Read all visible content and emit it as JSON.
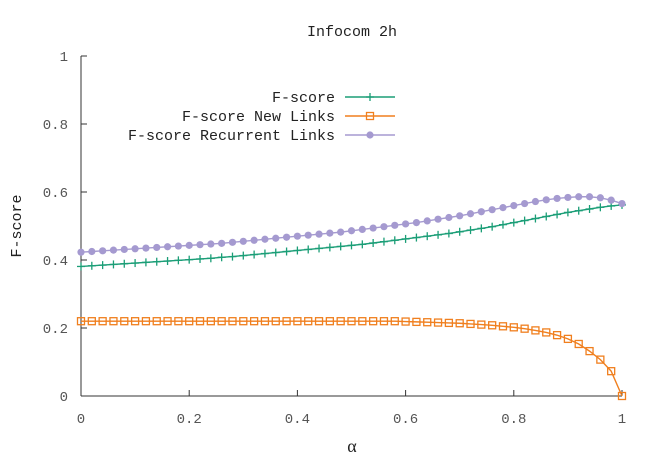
{
  "chart_data": {
    "type": "line",
    "title": "Infocom 2h",
    "xlabel": "α",
    "ylabel": "F-score",
    "xlim": [
      0,
      1
    ],
    "ylim": [
      0,
      1
    ],
    "xticks": [
      "0",
      "0.2",
      "0.4",
      "0.6",
      "0.8",
      "1"
    ],
    "yticks": [
      "0",
      "0.2",
      "0.4",
      "0.6",
      "0.8",
      "1"
    ],
    "legend_position": "top-center",
    "x": [
      0,
      0.02,
      0.04,
      0.06,
      0.08,
      0.1,
      0.12,
      0.14,
      0.16,
      0.18,
      0.2,
      0.22,
      0.24,
      0.26,
      0.28,
      0.3,
      0.32,
      0.34,
      0.36,
      0.38,
      0.4,
      0.42,
      0.44,
      0.46,
      0.48,
      0.5,
      0.52,
      0.54,
      0.56,
      0.58,
      0.6,
      0.62,
      0.64,
      0.66,
      0.68,
      0.7,
      0.72,
      0.74,
      0.76,
      0.78,
      0.8,
      0.82,
      0.84,
      0.86,
      0.88,
      0.9,
      0.92,
      0.94,
      0.96,
      0.98,
      1.0
    ],
    "series": [
      {
        "name": "F-score",
        "color": "#1b9e77",
        "marker": "plus",
        "values": [
          0.381,
          0.383,
          0.385,
          0.387,
          0.389,
          0.391,
          0.393,
          0.395,
          0.397,
          0.399,
          0.401,
          0.403,
          0.405,
          0.408,
          0.41,
          0.413,
          0.416,
          0.419,
          0.422,
          0.425,
          0.428,
          0.431,
          0.434,
          0.437,
          0.44,
          0.443,
          0.446,
          0.45,
          0.454,
          0.458,
          0.462,
          0.466,
          0.47,
          0.474,
          0.478,
          0.483,
          0.488,
          0.493,
          0.498,
          0.504,
          0.51,
          0.516,
          0.522,
          0.528,
          0.534,
          0.54,
          0.545,
          0.55,
          0.555,
          0.559,
          0.562
        ]
      },
      {
        "name": "F-score New Links",
        "color": "#f07f1e",
        "marker": "square",
        "values": [
          0.22,
          0.22,
          0.22,
          0.22,
          0.22,
          0.22,
          0.22,
          0.22,
          0.22,
          0.22,
          0.22,
          0.22,
          0.22,
          0.22,
          0.22,
          0.22,
          0.22,
          0.22,
          0.22,
          0.22,
          0.22,
          0.22,
          0.22,
          0.22,
          0.22,
          0.22,
          0.22,
          0.22,
          0.22,
          0.22,
          0.219,
          0.218,
          0.217,
          0.216,
          0.215,
          0.214,
          0.212,
          0.21,
          0.208,
          0.205,
          0.202,
          0.198,
          0.193,
          0.187,
          0.179,
          0.168,
          0.153,
          0.132,
          0.107,
          0.073,
          0.0
        ]
      },
      {
        "name": "F-score Recurrent Links",
        "color": "#a59ad0",
        "marker": "circle",
        "values": [
          0.423,
          0.425,
          0.427,
          0.429,
          0.431,
          0.433,
          0.435,
          0.437,
          0.439,
          0.441,
          0.443,
          0.445,
          0.447,
          0.449,
          0.452,
          0.455,
          0.458,
          0.461,
          0.464,
          0.467,
          0.47,
          0.473,
          0.476,
          0.479,
          0.482,
          0.486,
          0.49,
          0.494,
          0.498,
          0.502,
          0.506,
          0.51,
          0.515,
          0.52,
          0.525,
          0.53,
          0.536,
          0.542,
          0.548,
          0.554,
          0.56,
          0.566,
          0.572,
          0.577,
          0.581,
          0.584,
          0.586,
          0.586,
          0.583,
          0.576,
          0.566
        ]
      }
    ]
  }
}
